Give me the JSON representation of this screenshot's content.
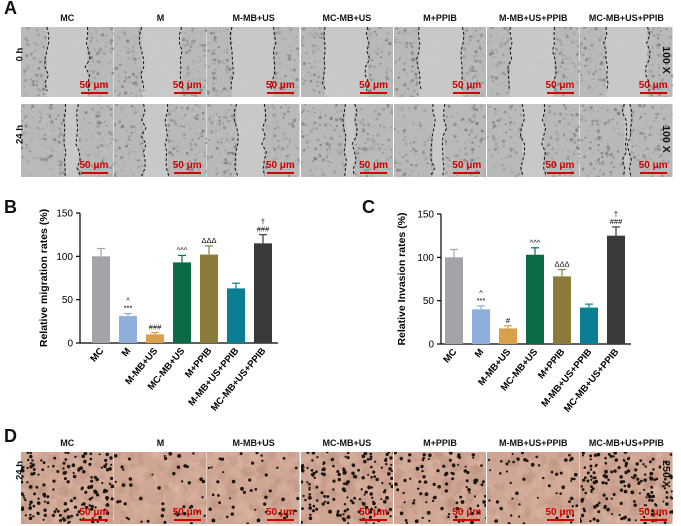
{
  "panels": {
    "a": "A",
    "b": "B",
    "c": "C",
    "d": "D"
  },
  "groups": [
    "MC",
    "M",
    "M-MB+US",
    "MC-MB+US",
    "M+PPIB",
    "M-MB+US+PPIB",
    "MC-MB+US+PPIB"
  ],
  "panel_a": {
    "rows": [
      "0 h",
      "24 h"
    ],
    "magnification": "100 X",
    "scale_label": "50 μm"
  },
  "panel_d": {
    "row": "24 h",
    "magnification": "250 X",
    "scale_label": "50 μm"
  },
  "colors": {
    "MC": "#a3a3a8",
    "M": "#8eaedb",
    "M-MB+US": "#d9a04b",
    "MC-MB+US": "#0b6b45",
    "M+PPIB": "#8b7c3b",
    "M-MB+US+PPIB": "#0c7e94",
    "MC-MB+US+PPIB": "#3a3a3a"
  },
  "chart_data": [
    {
      "type": "bar",
      "title": "",
      "xlabel": "",
      "ylabel": "Relative migration rates (%)",
      "ylim": [
        0,
        150
      ],
      "yticks": [
        0,
        50,
        100,
        150
      ],
      "categories": [
        "MC",
        "M",
        "M-MB+US",
        "MC-MB+US",
        "M+PPIB",
        "M-MB+US+PPIB",
        "MC-MB+US+PPIB"
      ],
      "values": [
        100,
        31,
        10,
        93,
        102,
        63,
        115
      ],
      "errors": [
        9,
        3,
        2,
        8,
        10,
        6,
        10
      ],
      "annotations": [
        "",
        "^\n***",
        "###",
        "^^^",
        "ΔΔΔ",
        "",
        "†\n###"
      ]
    },
    {
      "type": "bar",
      "title": "",
      "xlabel": "",
      "ylabel": "Relative Invasion rates (%)",
      "ylim": [
        0,
        150
      ],
      "yticks": [
        0,
        50,
        100,
        150
      ],
      "categories": [
        "MC",
        "M",
        "M-MB+US",
        "MC-MB+US",
        "M+PPIB",
        "M-MB+US+PPIB",
        "MC-MB+US+PPIB"
      ],
      "values": [
        100,
        40,
        18,
        103,
        78,
        42,
        125
      ],
      "errors": [
        9,
        4,
        3,
        8,
        8,
        4,
        10
      ],
      "annotations": [
        "",
        "^\n***",
        "#",
        "^^^",
        "ΔΔΔ",
        "",
        "†\n###"
      ]
    }
  ]
}
